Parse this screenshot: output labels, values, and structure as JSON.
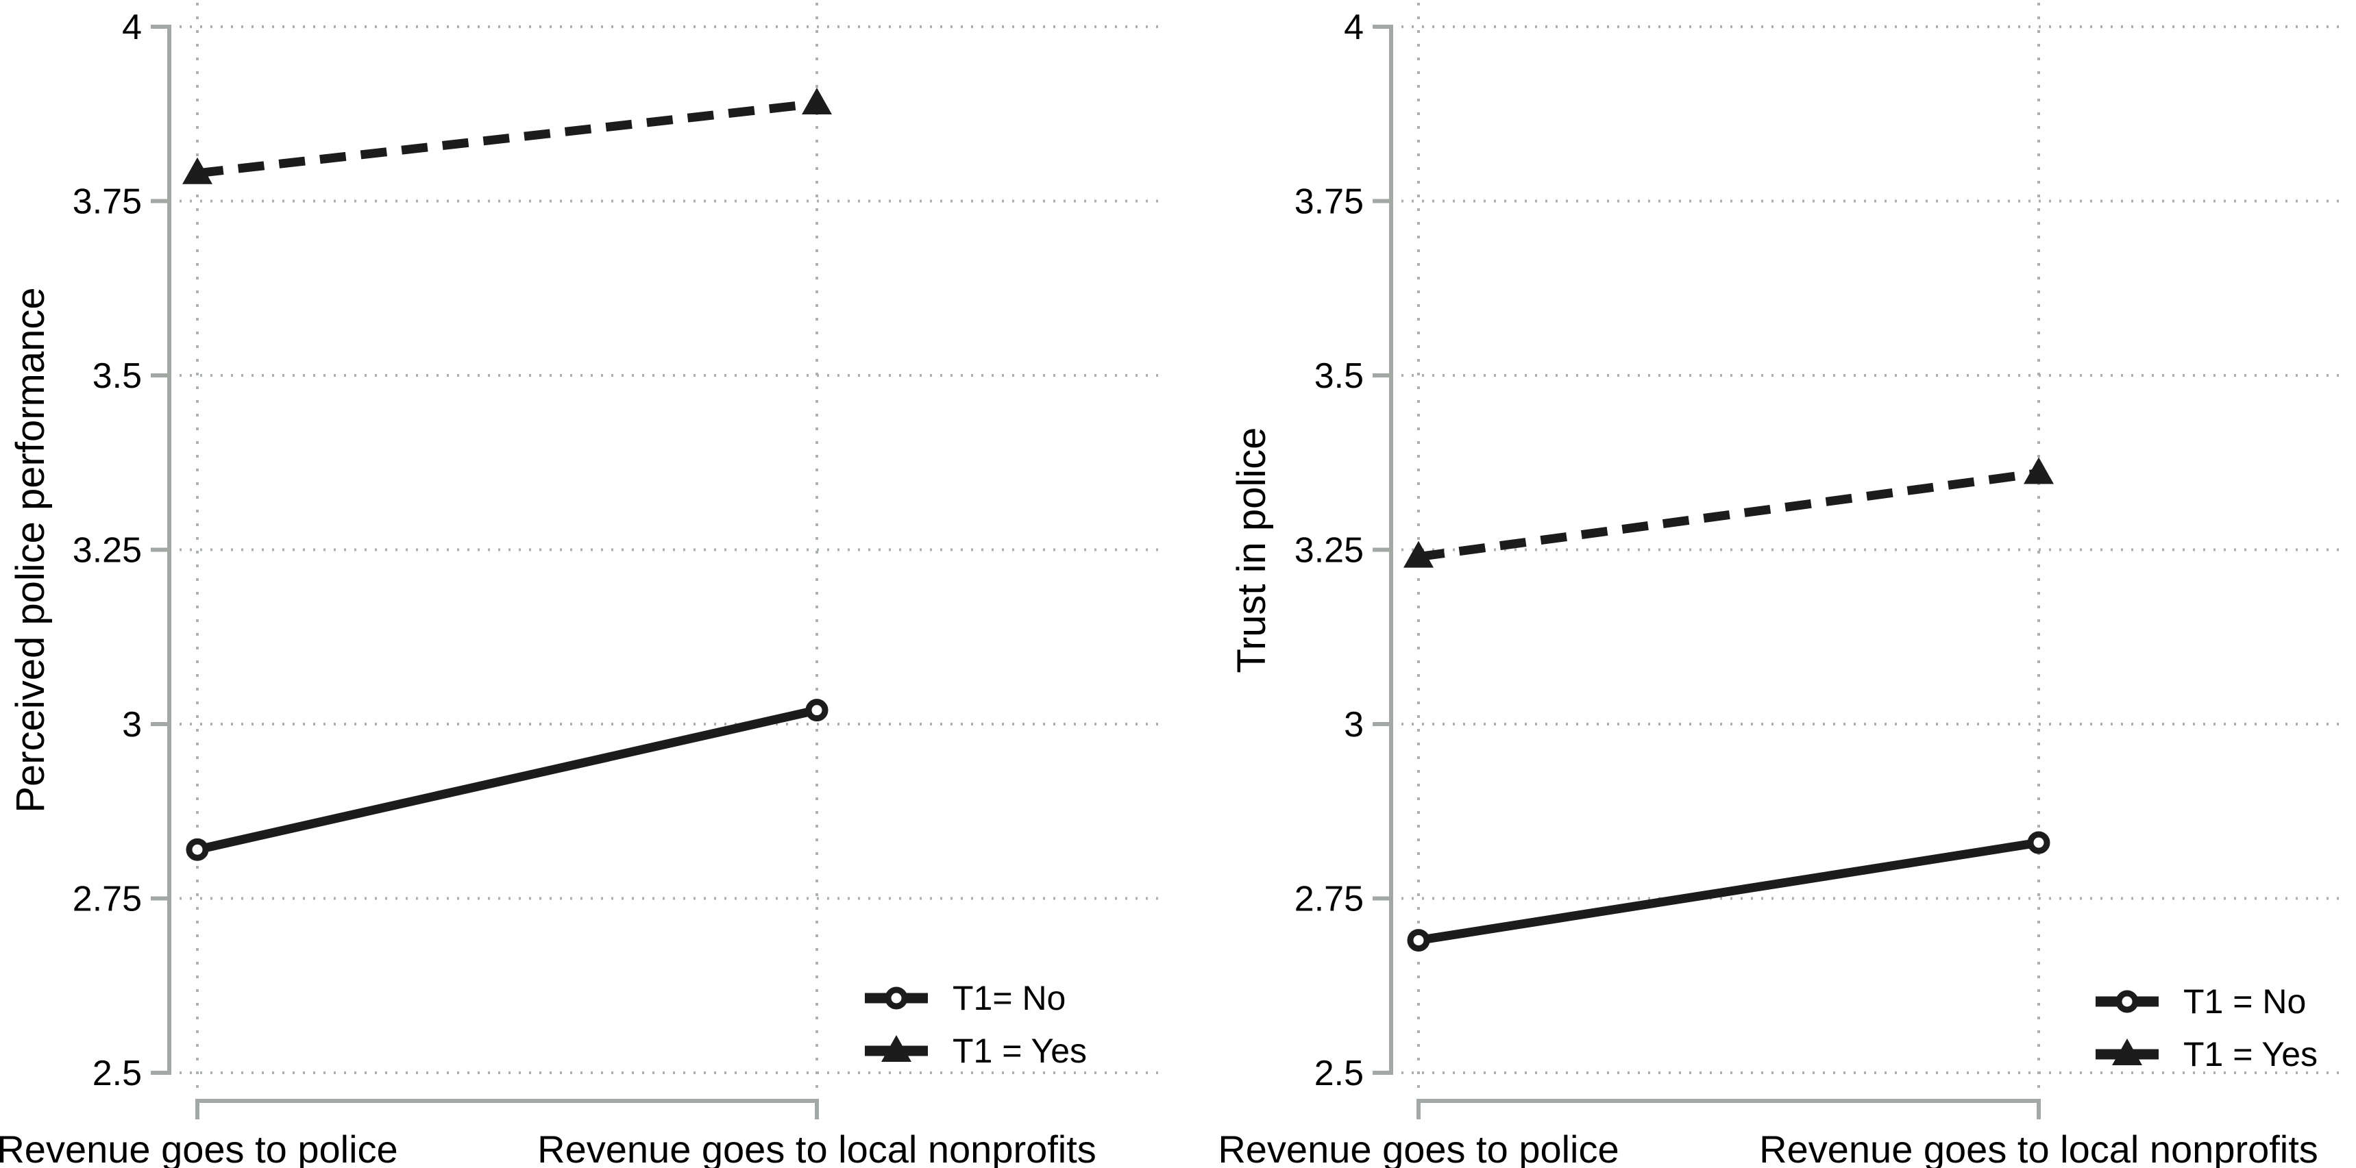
{
  "figure": {
    "background": "#ffffff",
    "data_line_color": "#1c1c1c",
    "axis_color": "#a2a8a3",
    "grid_color": "#aab0ab",
    "text_color": "#000000"
  },
  "chart_data": [
    {
      "type": "line",
      "panel": "left",
      "title": "",
      "xlabel": "",
      "ylabel": "Perceived police performance",
      "categories": [
        "Revenue goes to police",
        "Revenue goes to local nonprofits"
      ],
      "ylim": [
        2.5,
        4
      ],
      "yticks": [
        2.5,
        2.75,
        3,
        3.25,
        3.5,
        3.75,
        4
      ],
      "ytick_labels": [
        "2.5",
        "2.75",
        "3",
        "3.25",
        "3.5",
        "3.75",
        "4"
      ],
      "grid": "dotted horizontal and vertical",
      "legend_position": "bottom-right inside plot",
      "series": [
        {
          "name": "T1= No",
          "marker": "circle",
          "line_style": "solid",
          "values": [
            2.82,
            3.02
          ]
        },
        {
          "name": "T1 = Yes",
          "marker": "triangle",
          "line_style": "dashed",
          "values": [
            3.79,
            3.89
          ]
        }
      ]
    },
    {
      "type": "line",
      "panel": "right",
      "title": "",
      "xlabel": "",
      "ylabel": "Trust in police",
      "categories": [
        "Revenue goes to police",
        "Revenue goes to local nonprofits"
      ],
      "ylim": [
        2.5,
        4
      ],
      "yticks": [
        2.5,
        2.75,
        3,
        3.25,
        3.5,
        3.75,
        4
      ],
      "ytick_labels": [
        "2.5",
        "2.75",
        "3",
        "3.25",
        "3.5",
        "3.75",
        "4"
      ],
      "grid": "dotted horizontal and vertical",
      "legend_position": "bottom-right inside plot",
      "series": [
        {
          "name": "T1 = No",
          "marker": "circle",
          "line_style": "solid",
          "values": [
            2.69,
            2.83
          ]
        },
        {
          "name": "T1 = Yes",
          "marker": "triangle",
          "line_style": "dashed",
          "values": [
            3.24,
            3.36
          ]
        }
      ]
    }
  ]
}
